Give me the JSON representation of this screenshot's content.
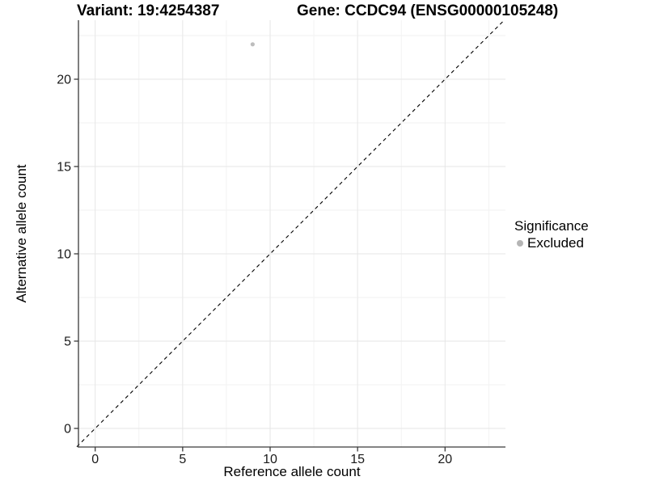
{
  "chart_data": {
    "type": "scatter",
    "title_variant": "Variant: 19:4254387",
    "title_gene": "Gene: CCDC94 (ENSG00000105248)",
    "xlabel": "Reference allele count",
    "ylabel": "Alternative allele count",
    "x_ticks": [
      0,
      5,
      10,
      15,
      20
    ],
    "y_ticks": [
      0,
      5,
      10,
      15,
      20
    ],
    "xlim": [
      -1.05,
      23.35
    ],
    "ylim": [
      -1.05,
      23.35
    ],
    "grid": {
      "major": true,
      "minor": true,
      "major_color": "#e6e6e6",
      "minor_color": "#f2f2f2"
    },
    "points": [
      {
        "x": 9,
        "y": 22,
        "series": "Excluded"
      }
    ],
    "point_color": "#bdbdbd",
    "point_radius_px": 2.6,
    "reference_line": {
      "kind": "identity",
      "slope": 1,
      "intercept": 0,
      "style": "dashed",
      "color": "#000000"
    },
    "legend": {
      "title": "Significance",
      "position": "right",
      "entries": [
        {
          "label": "Excluded",
          "color": "#b5b5b5",
          "marker": "circle"
        }
      ]
    },
    "axis_color": "#3a3a3a",
    "tick_label_color": "#1a1a1a",
    "text_color": "#000000"
  }
}
